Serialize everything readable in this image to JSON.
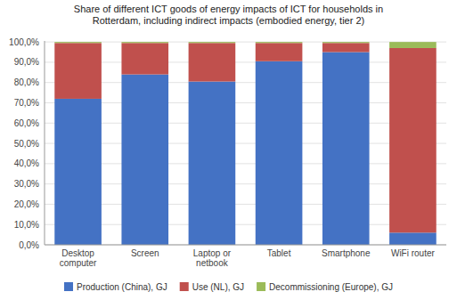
{
  "chart_data": {
    "type": "bar",
    "stacked": true,
    "title": "Share of different ICT goods of energy impacts of ICT for households in\nRotterdam, including indirect impacts (embodied energy, tier 2)",
    "categories": [
      "Desktop computer",
      "Screen",
      "Laptop or netbook",
      "Tablet",
      "Smartphone",
      "WiFi router"
    ],
    "series": [
      {
        "name": "Production (China), GJ",
        "color": "#4472C4",
        "values": [
          72.0,
          84.0,
          80.5,
          90.5,
          95.0,
          6.0
        ]
      },
      {
        "name": "Use (NL), GJ",
        "color": "#C0504D",
        "values": [
          27.5,
          15.5,
          19.0,
          9.0,
          4.5,
          91.0
        ]
      },
      {
        "name": "Decommissioning (Europe), GJ",
        "color": "#9BBB59",
        "values": [
          0.5,
          0.5,
          0.5,
          0.5,
          0.5,
          3.0
        ]
      }
    ],
    "ylim": [
      0,
      100.5
    ],
    "yticks": [
      {
        "value": 0,
        "label": "0,0%"
      },
      {
        "value": 10,
        "label": "10,0%"
      },
      {
        "value": 20,
        "label": "20,0%"
      },
      {
        "value": 30,
        "label": "30,0%"
      },
      {
        "value": 40,
        "label": "40,0%"
      },
      {
        "value": 50,
        "label": "50,0%"
      },
      {
        "value": 60,
        "label": "60,0%"
      },
      {
        "value": 70,
        "label": "70,0%"
      },
      {
        "value": 80,
        "label": "80,0%"
      },
      {
        "value": 90,
        "label": "90,0%"
      },
      {
        "value": 100,
        "label": "100,0%"
      }
    ],
    "grid": true,
    "legend": "bottom"
  }
}
